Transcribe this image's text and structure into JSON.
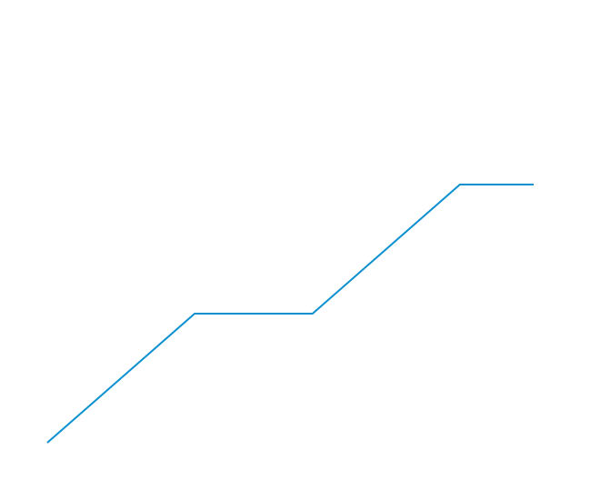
{
  "chart_data": {
    "type": "line",
    "x": [
      0,
      1,
      2,
      3,
      4
    ],
    "series": [
      {
        "values": [
          0,
          1,
          1,
          2,
          2
        ],
        "color": "#0a8fcf"
      }
    ],
    "x_breaks": [
      0,
      1,
      1.8,
      2.8,
      3.3
    ],
    "xlim": [
      0,
      3.3
    ],
    "ylim": [
      -0.6,
      2.8
    ],
    "grid": false,
    "axes_visible": false,
    "title": "",
    "xlabel": "",
    "ylabel": ""
  }
}
